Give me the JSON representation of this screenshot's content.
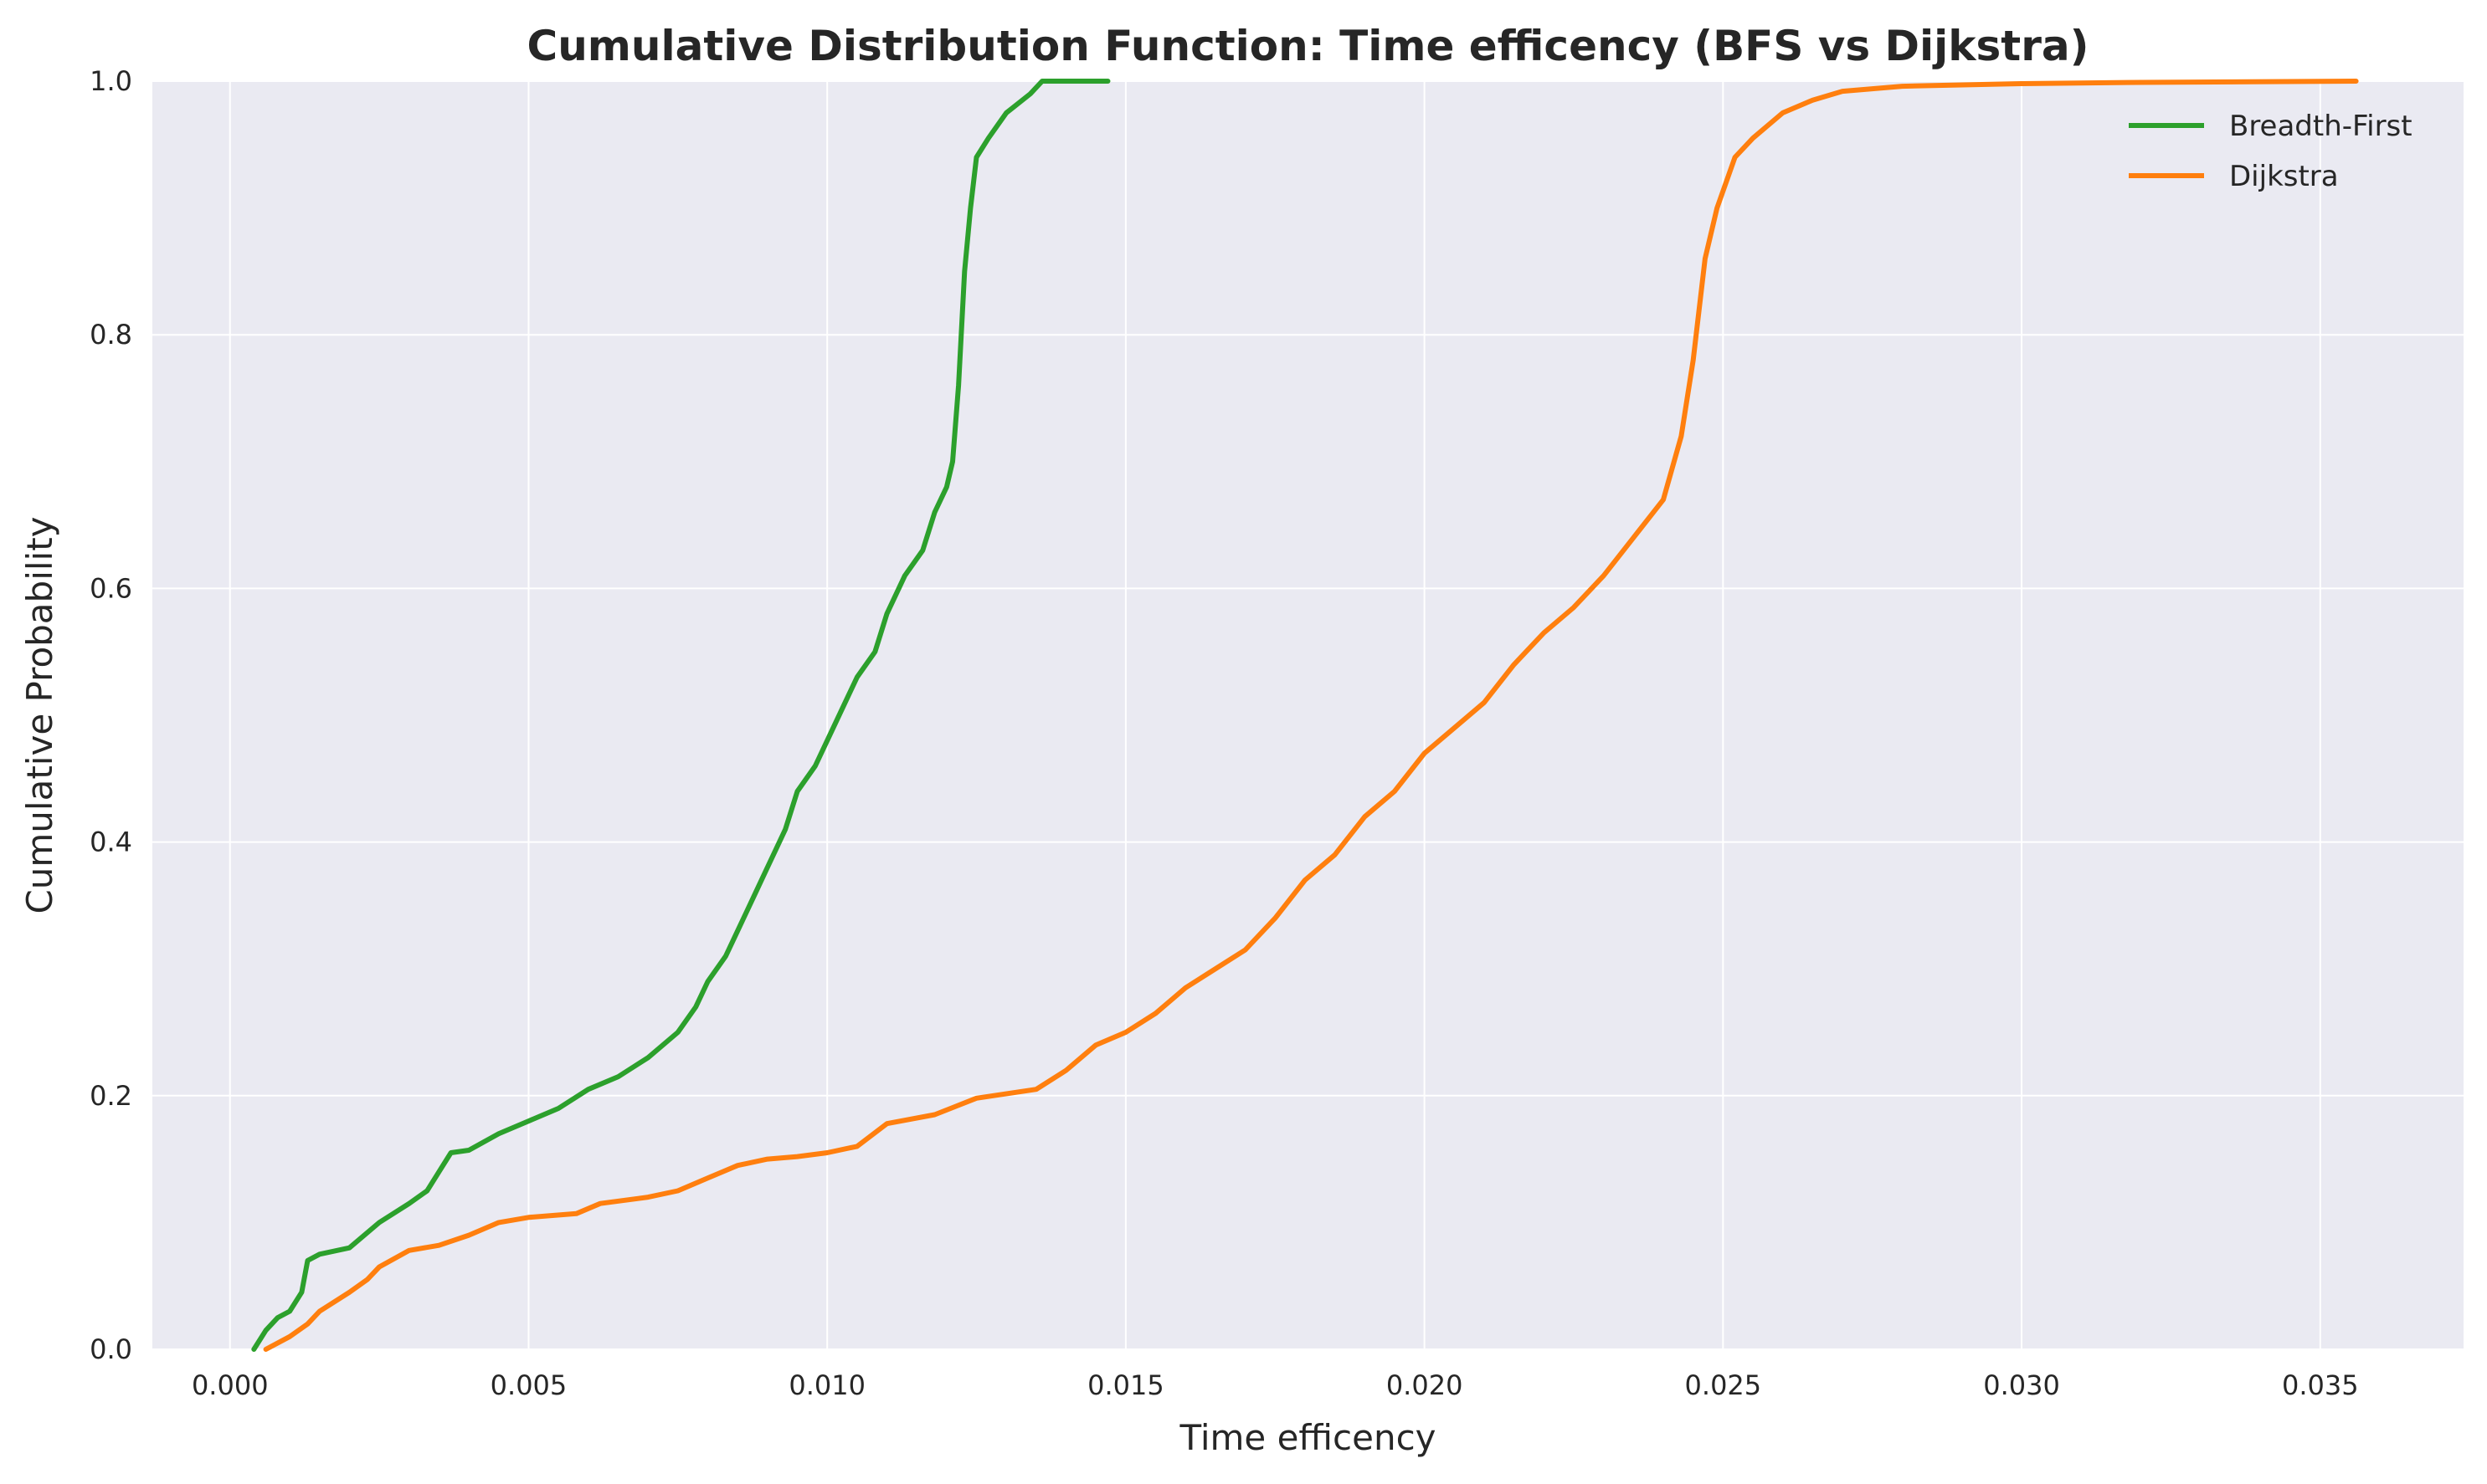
{
  "chart_data": {
    "type": "line",
    "title": "Cumulative Distribution Function: Time efficency (BFS vs Dijkstra)",
    "xlabel": "Time efficency",
    "ylabel": "Cumulative Probability",
    "xlim": [
      -0.0013,
      0.0374
    ],
    "ylim": [
      0.0,
      1.0
    ],
    "xticks": [
      0.0,
      0.005,
      0.01,
      0.015,
      0.02,
      0.025,
      0.03,
      0.035
    ],
    "xtick_labels": [
      "0.000",
      "0.005",
      "0.010",
      "0.015",
      "0.020",
      "0.025",
      "0.030",
      "0.035"
    ],
    "yticks": [
      0.0,
      0.2,
      0.4,
      0.6,
      0.8,
      1.0
    ],
    "ytick_labels": [
      "0.0",
      "0.2",
      "0.4",
      "0.6",
      "0.8",
      "1.0"
    ],
    "grid": true,
    "background": "#eaeaf2",
    "legend_position": "top-right",
    "series": [
      {
        "name": "Breadth-First",
        "color": "#2ca02c",
        "points": [
          [
            0.0004,
            0.0
          ],
          [
            0.0006,
            0.015
          ],
          [
            0.0008,
            0.025
          ],
          [
            0.001,
            0.03
          ],
          [
            0.0012,
            0.045
          ],
          [
            0.0013,
            0.07
          ],
          [
            0.0015,
            0.075
          ],
          [
            0.002,
            0.08
          ],
          [
            0.0025,
            0.1
          ],
          [
            0.003,
            0.115
          ],
          [
            0.0033,
            0.125
          ],
          [
            0.0035,
            0.14
          ],
          [
            0.0037,
            0.155
          ],
          [
            0.004,
            0.157
          ],
          [
            0.0045,
            0.17
          ],
          [
            0.005,
            0.18
          ],
          [
            0.0055,
            0.19
          ],
          [
            0.006,
            0.205
          ],
          [
            0.0065,
            0.215
          ],
          [
            0.007,
            0.23
          ],
          [
            0.0075,
            0.25
          ],
          [
            0.0078,
            0.27
          ],
          [
            0.008,
            0.29
          ],
          [
            0.0083,
            0.31
          ],
          [
            0.0085,
            0.33
          ],
          [
            0.0088,
            0.36
          ],
          [
            0.009,
            0.38
          ],
          [
            0.0093,
            0.41
          ],
          [
            0.0095,
            0.44
          ],
          [
            0.0098,
            0.46
          ],
          [
            0.01,
            0.48
          ],
          [
            0.0103,
            0.51
          ],
          [
            0.0105,
            0.53
          ],
          [
            0.0108,
            0.55
          ],
          [
            0.011,
            0.58
          ],
          [
            0.0113,
            0.61
          ],
          [
            0.0116,
            0.63
          ],
          [
            0.0118,
            0.66
          ],
          [
            0.012,
            0.68
          ],
          [
            0.0121,
            0.7
          ],
          [
            0.0122,
            0.76
          ],
          [
            0.0123,
            0.85
          ],
          [
            0.0124,
            0.9
          ],
          [
            0.0125,
            0.94
          ],
          [
            0.0127,
            0.955
          ],
          [
            0.013,
            0.975
          ],
          [
            0.0134,
            0.99
          ],
          [
            0.0136,
            1.0
          ],
          [
            0.0147,
            1.0
          ]
        ]
      },
      {
        "name": "Dijkstra",
        "color": "#ff7f0e",
        "points": [
          [
            0.0006,
            0.0
          ],
          [
            0.001,
            0.01
          ],
          [
            0.0013,
            0.02
          ],
          [
            0.0015,
            0.03
          ],
          [
            0.002,
            0.045
          ],
          [
            0.0023,
            0.055
          ],
          [
            0.0025,
            0.065
          ],
          [
            0.003,
            0.078
          ],
          [
            0.0035,
            0.082
          ],
          [
            0.004,
            0.09
          ],
          [
            0.0045,
            0.1
          ],
          [
            0.005,
            0.104
          ],
          [
            0.0058,
            0.107
          ],
          [
            0.0062,
            0.115
          ],
          [
            0.007,
            0.12
          ],
          [
            0.0075,
            0.125
          ],
          [
            0.008,
            0.135
          ],
          [
            0.0085,
            0.145
          ],
          [
            0.009,
            0.15
          ],
          [
            0.0095,
            0.152
          ],
          [
            0.01,
            0.155
          ],
          [
            0.0105,
            0.16
          ],
          [
            0.011,
            0.178
          ],
          [
            0.0118,
            0.185
          ],
          [
            0.0125,
            0.198
          ],
          [
            0.0135,
            0.205
          ],
          [
            0.014,
            0.22
          ],
          [
            0.0145,
            0.24
          ],
          [
            0.015,
            0.25
          ],
          [
            0.0155,
            0.265
          ],
          [
            0.016,
            0.285
          ],
          [
            0.0165,
            0.3
          ],
          [
            0.017,
            0.315
          ],
          [
            0.0175,
            0.34
          ],
          [
            0.018,
            0.37
          ],
          [
            0.0185,
            0.39
          ],
          [
            0.019,
            0.42
          ],
          [
            0.0195,
            0.44
          ],
          [
            0.02,
            0.47
          ],
          [
            0.0205,
            0.49
          ],
          [
            0.021,
            0.51
          ],
          [
            0.0215,
            0.54
          ],
          [
            0.022,
            0.565
          ],
          [
            0.0225,
            0.585
          ],
          [
            0.023,
            0.61
          ],
          [
            0.0235,
            0.64
          ],
          [
            0.024,
            0.67
          ],
          [
            0.0243,
            0.72
          ],
          [
            0.0245,
            0.78
          ],
          [
            0.0247,
            0.86
          ],
          [
            0.0249,
            0.9
          ],
          [
            0.0252,
            0.94
          ],
          [
            0.0255,
            0.955
          ],
          [
            0.026,
            0.975
          ],
          [
            0.0265,
            0.985
          ],
          [
            0.027,
            0.992
          ],
          [
            0.028,
            0.996
          ],
          [
            0.03,
            0.998
          ],
          [
            0.032,
            0.999
          ],
          [
            0.0356,
            1.0
          ]
        ]
      }
    ]
  }
}
